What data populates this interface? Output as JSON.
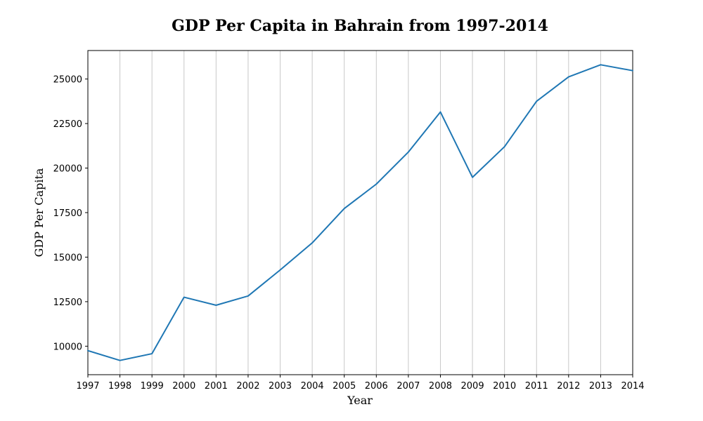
{
  "chart_data": {
    "type": "line",
    "title": "GDP Per Capita in Bahrain from 1997-2014",
    "xlabel": "Year",
    "ylabel": "GDP Per Capita",
    "x": [
      "1997",
      "1998",
      "1999",
      "2000",
      "2001",
      "2002",
      "2003",
      "2004",
      "2005",
      "2006",
      "2007",
      "2008",
      "2009",
      "2010",
      "2011",
      "2012",
      "2013",
      "2014"
    ],
    "series": [
      {
        "values": [
          9750,
          9200,
          9580,
          12750,
          12300,
          12820,
          14280,
          15800,
          17730,
          19100,
          20900,
          23150,
          19480,
          21200,
          23750,
          25120,
          25800,
          25470
        ],
        "color": "#1f77b4"
      }
    ],
    "ylim": [
      8400,
      26600
    ],
    "yticks": [
      10000,
      12500,
      15000,
      17500,
      20000,
      22500,
      25000
    ],
    "grid": "x-only",
    "legend": "none"
  }
}
